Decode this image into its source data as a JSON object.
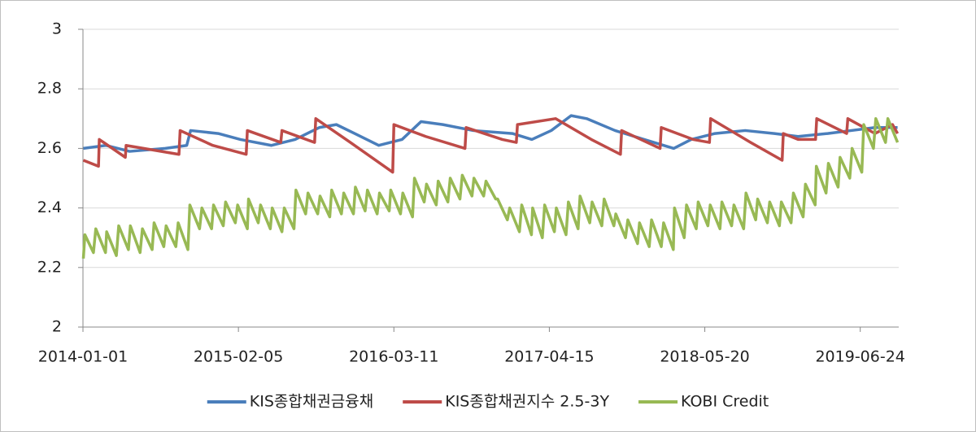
{
  "chart_data": {
    "type": "line",
    "xlim": [
      "2014-01-01",
      "2019-10-01"
    ],
    "xticks": [
      "2014-01-01",
      "2015-02-05",
      "2016-03-11",
      "2017-04-15",
      "2018-05-20",
      "2019-06-24"
    ],
    "ylim": [
      2,
      3
    ],
    "yticks": [
      2,
      2.2,
      2.4,
      2.6,
      2.8,
      3
    ],
    "grid": true,
    "legend": "bottom",
    "series": [
      {
        "name": "KIS종합채권금융채",
        "color": "#4a7ebb",
        "x": [
          "2014-01-02",
          "2014-03-01",
          "2014-05-01",
          "2014-08-01",
          "2014-09-25",
          "2014-10-05",
          "2014-12-15",
          "2015-02-10",
          "2015-05-01",
          "2015-07-01",
          "2015-09-01",
          "2015-10-15",
          "2015-12-01",
          "2016-02-01",
          "2016-04-01",
          "2016-05-20",
          "2016-07-15",
          "2016-10-01",
          "2017-01-10",
          "2017-03-01",
          "2017-04-20",
          "2017-06-10",
          "2017-07-20",
          "2017-10-01",
          "2017-12-15",
          "2018-03-01",
          "2018-04-15",
          "2018-06-15",
          "2018-09-01",
          "2018-11-15",
          "2019-01-15",
          "2019-04-01",
          "2019-06-01",
          "2019-08-01",
          "2019-09-28"
        ],
        "values": [
          2.6,
          2.61,
          2.59,
          2.6,
          2.61,
          2.66,
          2.65,
          2.63,
          2.61,
          2.63,
          2.67,
          2.68,
          2.65,
          2.61,
          2.63,
          2.69,
          2.68,
          2.66,
          2.65,
          2.63,
          2.66,
          2.71,
          2.7,
          2.66,
          2.63,
          2.6,
          2.63,
          2.65,
          2.66,
          2.65,
          2.64,
          2.65,
          2.66,
          2.67,
          2.67
        ]
      },
      {
        "name": "KIS종합채권지수 2.5-3Y",
        "color": "#be4b48",
        "x": [
          "2014-01-02",
          "2014-02-10",
          "2014-02-12",
          "2014-04-20",
          "2014-04-22",
          "2014-09-05",
          "2014-09-08",
          "2014-12-01",
          "2015-02-25",
          "2015-02-28",
          "2015-05-25",
          "2015-05-28",
          "2015-08-20",
          "2015-08-23",
          "2015-11-20",
          "2016-03-08",
          "2016-03-11",
          "2016-06-01",
          "2016-09-10",
          "2016-09-13",
          "2016-12-15",
          "2017-01-20",
          "2017-01-23",
          "2017-05-01",
          "2017-08-01",
          "2017-10-15",
          "2017-10-18",
          "2018-01-25",
          "2018-01-28",
          "2018-04-20",
          "2018-06-01",
          "2018-06-04",
          "2018-09-15",
          "2018-12-05",
          "2018-12-08",
          "2019-01-15",
          "2019-03-01",
          "2019-03-04",
          "2019-05-20",
          "2019-05-23",
          "2019-08-01",
          "2019-09-15",
          "2019-09-28"
        ],
        "values": [
          2.56,
          2.54,
          2.63,
          2.57,
          2.61,
          2.58,
          2.66,
          2.61,
          2.58,
          2.66,
          2.62,
          2.66,
          2.62,
          2.7,
          2.62,
          2.52,
          2.68,
          2.64,
          2.6,
          2.67,
          2.63,
          2.62,
          2.68,
          2.7,
          2.63,
          2.58,
          2.66,
          2.6,
          2.67,
          2.63,
          2.62,
          2.7,
          2.62,
          2.56,
          2.65,
          2.63,
          2.63,
          2.7,
          2.65,
          2.7,
          2.65,
          2.68,
          2.65
        ]
      },
      {
        "name": "KOBI Credit",
        "color": "#98b954",
        "x": [
          "2014-01-02",
          "2014-01-06",
          "2014-01-28",
          "2014-02-03",
          "2014-02-28",
          "2014-03-03",
          "2014-03-28",
          "2014-04-03",
          "2014-04-28",
          "2014-05-03",
          "2014-05-28",
          "2014-06-03",
          "2014-06-28",
          "2014-07-03",
          "2014-07-28",
          "2014-08-03",
          "2014-08-28",
          "2014-09-03",
          "2014-09-28",
          "2014-10-03",
          "2014-10-28",
          "2014-11-03",
          "2014-11-28",
          "2014-12-03",
          "2014-12-28",
          "2015-01-03",
          "2015-01-28",
          "2015-02-03",
          "2015-02-28",
          "2015-03-03",
          "2015-03-28",
          "2015-04-03",
          "2015-04-28",
          "2015-05-03",
          "2015-05-28",
          "2015-06-03",
          "2015-06-28",
          "2015-07-03",
          "2015-07-28",
          "2015-08-03",
          "2015-08-28",
          "2015-09-03",
          "2015-09-28",
          "2015-10-03",
          "2015-10-28",
          "2015-11-03",
          "2015-11-28",
          "2015-12-03",
          "2015-12-28",
          "2016-01-03",
          "2016-01-28",
          "2016-02-03",
          "2016-02-28",
          "2016-03-03",
          "2016-03-28",
          "2016-04-03",
          "2016-04-28",
          "2016-05-03",
          "2016-05-28",
          "2016-06-03",
          "2016-06-28",
          "2016-07-03",
          "2016-07-28",
          "2016-08-03",
          "2016-08-28",
          "2016-09-03",
          "2016-09-28",
          "2016-10-03",
          "2016-10-28",
          "2016-11-03",
          "2016-11-28",
          "2016-12-03",
          "2016-12-28",
          "2017-01-03",
          "2017-01-28",
          "2017-02-03",
          "2017-02-28",
          "2017-03-03",
          "2017-03-28",
          "2017-04-03",
          "2017-04-28",
          "2017-05-03",
          "2017-05-28",
          "2017-06-03",
          "2017-06-28",
          "2017-07-03",
          "2017-07-28",
          "2017-08-03",
          "2017-08-28",
          "2017-09-03",
          "2017-09-28",
          "2017-10-03",
          "2017-10-28",
          "2017-11-03",
          "2017-11-28",
          "2017-12-03",
          "2017-12-28",
          "2018-01-03",
          "2018-01-28",
          "2018-02-03",
          "2018-02-28",
          "2018-03-03",
          "2018-03-28",
          "2018-04-03",
          "2018-04-28",
          "2018-05-03",
          "2018-05-28",
          "2018-06-03",
          "2018-06-28",
          "2018-07-03",
          "2018-07-28",
          "2018-08-03",
          "2018-08-28",
          "2018-09-03",
          "2018-09-28",
          "2018-10-03",
          "2018-10-28",
          "2018-11-03",
          "2018-11-28",
          "2018-12-03",
          "2018-12-28",
          "2019-01-03",
          "2019-01-28",
          "2019-02-03",
          "2019-02-28",
          "2019-03-03",
          "2019-03-28",
          "2019-04-03",
          "2019-04-28",
          "2019-05-03",
          "2019-05-28",
          "2019-06-03",
          "2019-06-28",
          "2019-07-03",
          "2019-07-28",
          "2019-08-03",
          "2019-08-28",
          "2019-09-03",
          "2019-09-28"
        ],
        "values": [
          2.23,
          2.31,
          2.25,
          2.33,
          2.25,
          2.32,
          2.24,
          2.34,
          2.26,
          2.34,
          2.25,
          2.33,
          2.26,
          2.35,
          2.27,
          2.34,
          2.27,
          2.35,
          2.26,
          2.41,
          2.33,
          2.4,
          2.33,
          2.41,
          2.34,
          2.42,
          2.35,
          2.41,
          2.33,
          2.43,
          2.35,
          2.41,
          2.33,
          2.4,
          2.32,
          2.4,
          2.33,
          2.46,
          2.38,
          2.45,
          2.38,
          2.44,
          2.37,
          2.46,
          2.38,
          2.45,
          2.38,
          2.47,
          2.39,
          2.46,
          2.38,
          2.45,
          2.39,
          2.46,
          2.38,
          2.45,
          2.37,
          2.5,
          2.42,
          2.48,
          2.41,
          2.49,
          2.42,
          2.5,
          2.43,
          2.51,
          2.44,
          2.5,
          2.44,
          2.49,
          2.43,
          2.43,
          2.36,
          2.4,
          2.32,
          2.41,
          2.31,
          2.4,
          2.3,
          2.41,
          2.32,
          2.4,
          2.31,
          2.42,
          2.33,
          2.44,
          2.35,
          2.42,
          2.34,
          2.43,
          2.34,
          2.38,
          2.3,
          2.36,
          2.28,
          2.35,
          2.27,
          2.36,
          2.27,
          2.35,
          2.26,
          2.4,
          2.3,
          2.41,
          2.33,
          2.42,
          2.34,
          2.41,
          2.33,
          2.42,
          2.34,
          2.41,
          2.33,
          2.45,
          2.36,
          2.43,
          2.35,
          2.42,
          2.34,
          2.42,
          2.35,
          2.45,
          2.37,
          2.48,
          2.41,
          2.54,
          2.45,
          2.55,
          2.47,
          2.57,
          2.5,
          2.6,
          2.52,
          2.68,
          2.6,
          2.7,
          2.62,
          2.7,
          2.62
        ]
      }
    ]
  }
}
